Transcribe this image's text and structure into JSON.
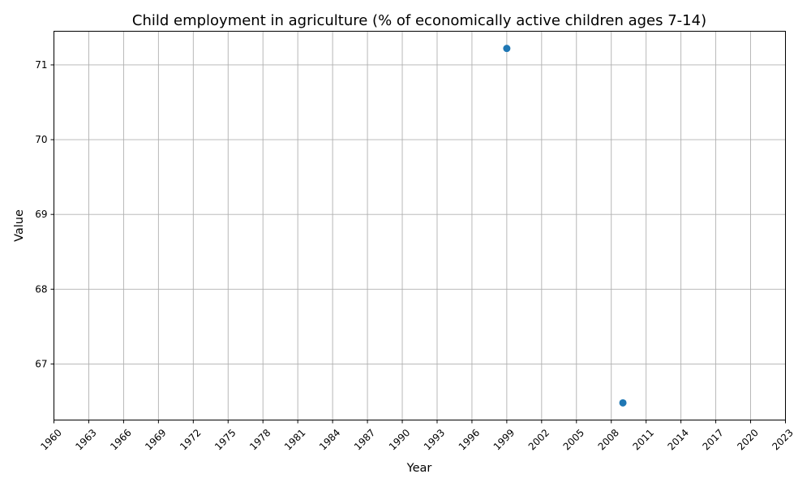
{
  "chart_data": {
    "type": "scatter",
    "title": "Child employment in agriculture (% of economically active children ages 7-14)",
    "xlabel": "Year",
    "ylabel": "Value",
    "x": [
      1999,
      2009
    ],
    "y": [
      71.22,
      66.48
    ],
    "series_color": "#1f77b4",
    "xlim": [
      1960,
      2023
    ],
    "ylim": [
      66.25,
      71.45
    ],
    "x_ticks": [
      1960,
      1963,
      1966,
      1969,
      1972,
      1975,
      1978,
      1981,
      1984,
      1987,
      1990,
      1993,
      1996,
      1999,
      2002,
      2005,
      2008,
      2011,
      2014,
      2017,
      2020,
      2023
    ],
    "y_ticks": [
      67,
      68,
      69,
      70,
      71
    ],
    "grid": true,
    "legend": "none"
  }
}
